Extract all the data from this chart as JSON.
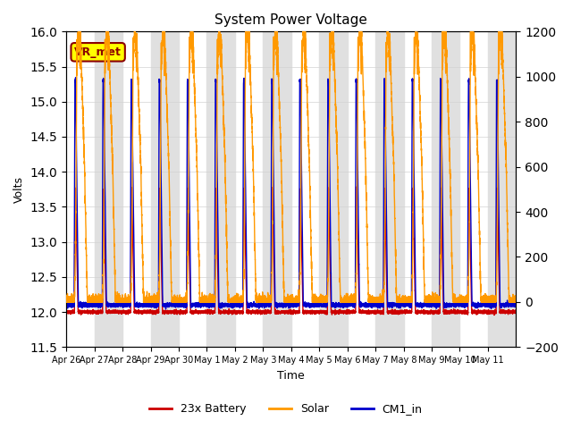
{
  "title": "System Power Voltage",
  "xlabel": "Time",
  "ylabel": "Volts",
  "ylim_left": [
    11.5,
    16.0
  ],
  "ylim_right": [
    -200,
    1200
  ],
  "yticks_left": [
    11.5,
    12.0,
    12.5,
    13.0,
    13.5,
    14.0,
    14.5,
    15.0,
    15.5,
    16.0
  ],
  "yticks_right": [
    -200,
    0,
    200,
    400,
    600,
    800,
    1000,
    1200
  ],
  "x_tick_labels": [
    "Apr 26",
    "Apr 27",
    "Apr 28",
    "Apr 29",
    "Apr 30",
    "May 1",
    "May 2",
    "May 3",
    "May 4",
    "May 5",
    "May 6",
    "May 7",
    "May 8",
    "May 9",
    "May 10",
    "May 11"
  ],
  "legend_labels": [
    "23x Battery",
    "Solar",
    "CM1_in"
  ],
  "legend_colors": [
    "#cc0000",
    "#ff9900",
    "#0000cc"
  ],
  "vr_met_label": "VR_met",
  "background_color": "#ffffff",
  "band_color": "#e0e0e0",
  "n_days": 16,
  "battery_base": 12.0,
  "battery_peak": 13.75,
  "cm1_base": 12.1,
  "cm1_peak": 15.3,
  "solar_peak_watts": 1200,
  "solar_base_watts": 0
}
